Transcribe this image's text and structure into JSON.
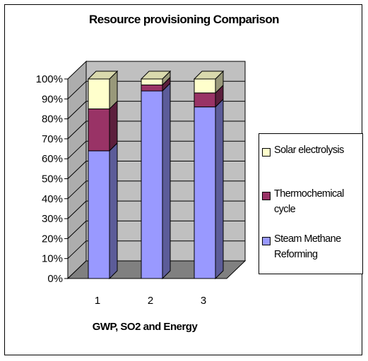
{
  "chart_data": {
    "type": "bar",
    "stacked": true,
    "percent_stacked": true,
    "three_d": true,
    "title": "Resource provisioning Comparison",
    "xlabel": "GWP, SO2 and Energy",
    "ylabel": "",
    "categories": [
      "1",
      "2",
      "3"
    ],
    "ylim": [
      0,
      100
    ],
    "yticks": [
      "0%",
      "10%",
      "20%",
      "30%",
      "40%",
      "50%",
      "60%",
      "70%",
      "80%",
      "90%",
      "100%"
    ],
    "grid": true,
    "legend_position": "right",
    "series": [
      {
        "name": "Steam Methane Reforming",
        "values": [
          64,
          94,
          86
        ],
        "color": "#9999ff"
      },
      {
        "name": "Thermochemical cycle",
        "values": [
          21,
          3,
          7
        ],
        "color": "#993366"
      },
      {
        "name": "Solar electrolysis",
        "values": [
          15,
          3,
          7
        ],
        "color": "#ffffcc"
      }
    ],
    "legend": [
      {
        "label": "Solar electrolysis",
        "color": "#ffffcc"
      },
      {
        "label": "Thermochemical cycle",
        "color": "#993366"
      },
      {
        "label": "Steam Methane Reforming",
        "color": "#9999ff"
      }
    ],
    "wall_color": "#c0c0c0"
  }
}
